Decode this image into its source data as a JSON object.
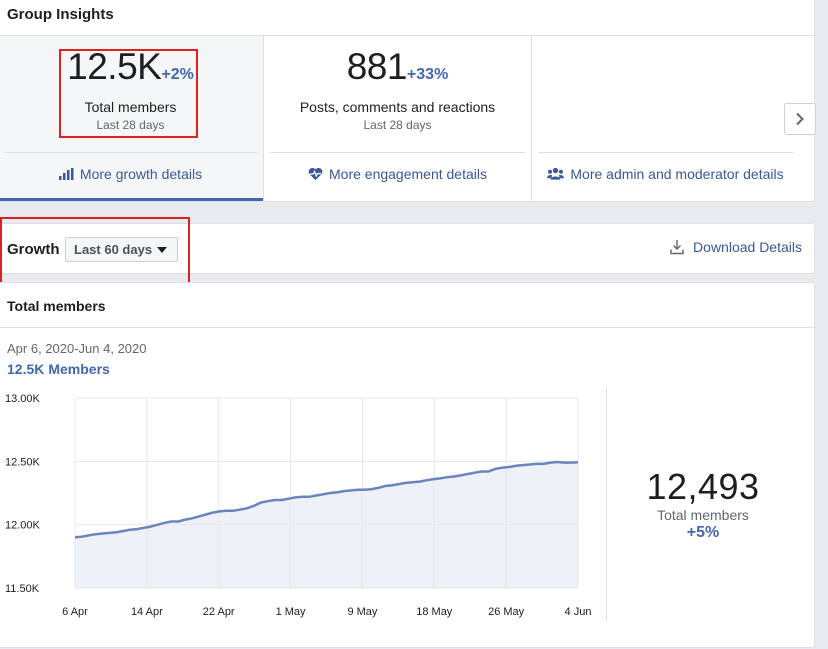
{
  "insights": {
    "title": "Group Insights",
    "stats": [
      {
        "value": "12.5K",
        "change": "+2%",
        "label": "Total members",
        "period": "Last 28 days",
        "link": "More growth details",
        "icon": "bar-chart-icon"
      },
      {
        "value": "881",
        "change": "+33%",
        "label": "Posts, comments and reactions",
        "period": "Last 28 days",
        "link": "More engagement details",
        "icon": "heart-pulse-icon"
      },
      {
        "value": "",
        "change": "",
        "label": "",
        "period": "",
        "link": "More admin and moderator details",
        "icon": "people-icon"
      }
    ],
    "next_icon": "chevron-right-icon"
  },
  "growth": {
    "title": "Growth",
    "period_selected": "Last 60 days",
    "download_label": "Download Details",
    "download_icon": "download-icon"
  },
  "members": {
    "title": "Total members",
    "date_range": "Apr 6, 2020-Jun 4, 2020",
    "count": "12.5K",
    "count_unit": "Members",
    "summary_value": "12,493",
    "summary_label": "Total members",
    "summary_change": "+5%"
  },
  "colors": {
    "accent": "#4267b2",
    "link": "#385898",
    "line": "#6a85bd",
    "area": "#eef1f7",
    "highlight": "#e02020"
  },
  "chart_data": {
    "type": "area",
    "ylim": [
      11500,
      13000
    ],
    "yticks": [
      11500,
      12000,
      12500,
      13000
    ],
    "ytick_labels": [
      "11.50K",
      "12.00K",
      "12.50K",
      "13.00K"
    ],
    "xticks": [
      "6 Apr",
      "14 Apr",
      "22 Apr",
      "1 May",
      "9 May",
      "18 May",
      "26 May",
      "4 Jun"
    ],
    "x_start": "2020-04-06",
    "x_end": "2020-06-04",
    "series": [
      {
        "values": [
          11900,
          11905,
          11915,
          11925,
          11930,
          11935,
          11940,
          11950,
          11960,
          11965,
          11975,
          11985,
          12000,
          12015,
          12025,
          12025,
          12040,
          12050,
          12065,
          12080,
          12095,
          12105,
          12110,
          12110,
          12120,
          12130,
          12150,
          12175,
          12185,
          12195,
          12195,
          12205,
          12215,
          12220,
          12220,
          12230,
          12240,
          12250,
          12255,
          12265,
          12270,
          12275,
          12275,
          12280,
          12290,
          12305,
          12310,
          12320,
          12330,
          12335,
          12340,
          12350,
          12360,
          12365,
          12375,
          12380,
          12390,
          12400,
          12410,
          12420,
          12420,
          12440,
          12450,
          12455,
          12465,
          12470,
          12475,
          12480,
          12480,
          12490,
          12495,
          12490,
          12490,
          12493
        ]
      }
    ]
  }
}
